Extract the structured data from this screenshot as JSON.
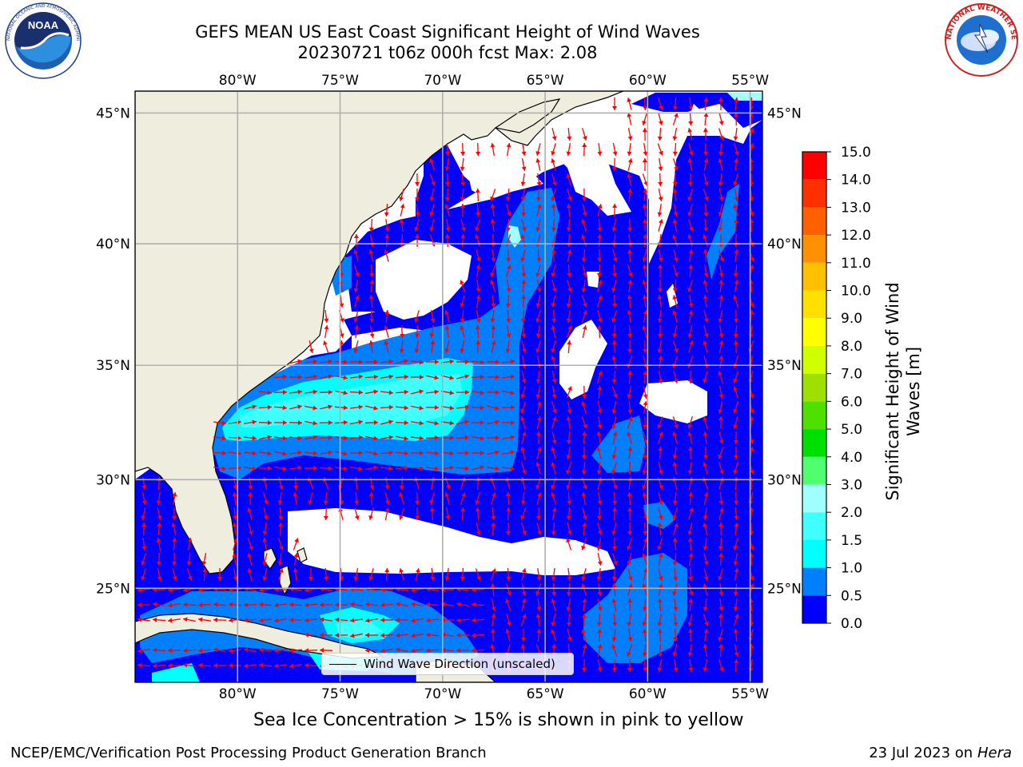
{
  "header": {
    "title_line1": "GEFS MEAN US East Coast Significant Height of Wind Waves",
    "title_line2": "20230721 t06z 000h fcst   Max: 2.08"
  },
  "logos": {
    "left": {
      "icon": "noaa-logo",
      "text": "NOAA",
      "ring_text": "NATIONAL OCEANIC AND ATMOSPHERIC ADMINISTRATION · U.S. DEPARTMENT OF COMMERCE"
    },
    "right": {
      "icon": "nws-logo",
      "ring_text": "NATIONAL WEATHER SERVICE"
    }
  },
  "map": {
    "lon_labels": [
      "80°W",
      "75°W",
      "70°W",
      "65°W",
      "60°W",
      "55°W"
    ],
    "lon_values": [
      -80,
      -75,
      -70,
      -65,
      -60,
      -55
    ],
    "lat_labels": [
      "45°N",
      "40°N",
      "35°N",
      "30°N",
      "25°N"
    ],
    "lat_values": [
      45,
      40,
      35,
      30,
      25
    ],
    "lon_range": [
      -85,
      -54.4
    ],
    "lat_range": [
      20.5,
      45.8
    ],
    "land_color": "#efedde",
    "grid_color": "#b0b0b0",
    "arrow_color": "#ff0000"
  },
  "legend": {
    "wind_wave_direction": "Wind Wave Direction (unscaled)"
  },
  "colorbar": {
    "label": "Significant Height of Wind Waves [m]",
    "label_line1": "Significant Height of Wind",
    "label_line2": "Waves [m]",
    "tick_labels": [
      "0.0",
      "0.5",
      "1.0",
      "1.5",
      "2.0",
      "3.0",
      "4.0",
      "5.0",
      "6.0",
      "7.0",
      "8.0",
      "9.0",
      "10.0",
      "11.0",
      "12.0",
      "13.0",
      "14.0",
      "15.0"
    ],
    "colors": [
      "#0000ff",
      "#0080ff",
      "#00ffff",
      "#40ffff",
      "#a0ffff",
      "#50ff70",
      "#00e000",
      "#50e000",
      "#a0e000",
      "#d0ff00",
      "#ffff00",
      "#ffe000",
      "#ffc000",
      "#ff9000",
      "#ff6000",
      "#ff3000",
      "#ff0000"
    ]
  },
  "footer": {
    "sea_ice_note": "Sea Ice Concentration > 15% is shown in pink to yellow",
    "credit": "NCEP/EMC/Verification Post Processing Product Generation Branch",
    "date": "23 Jul 2023 on ",
    "machine": "Hera"
  }
}
